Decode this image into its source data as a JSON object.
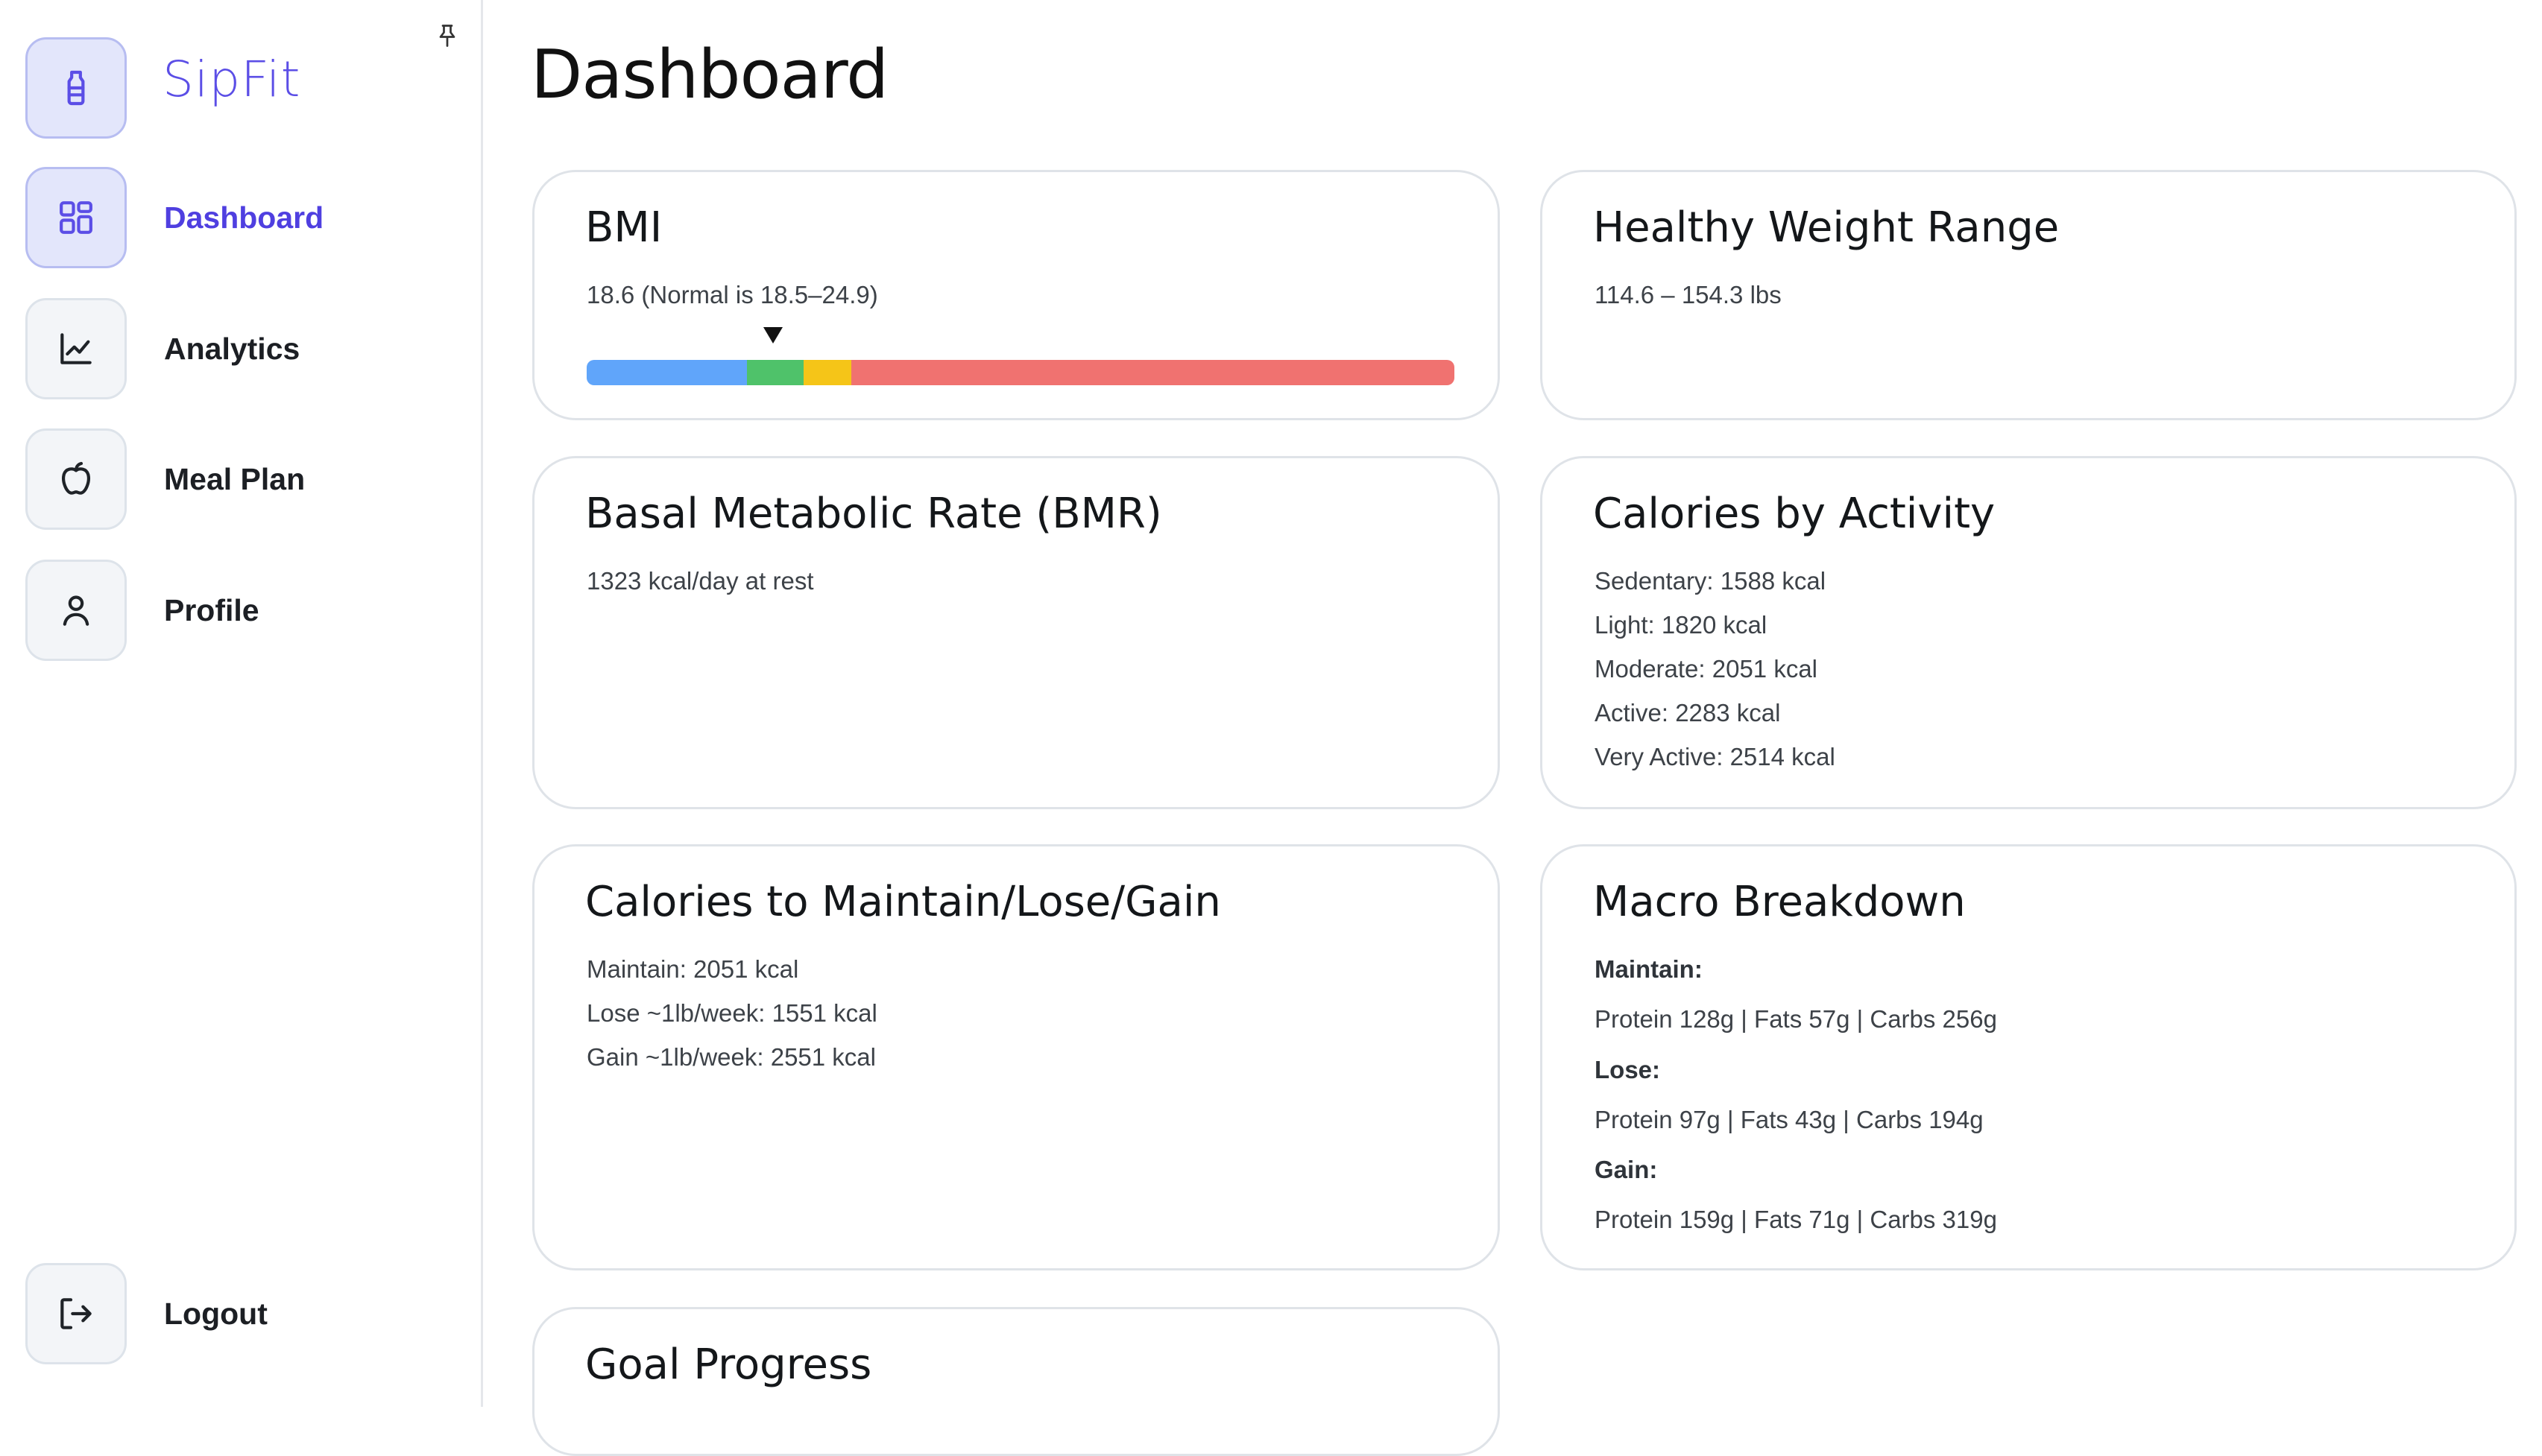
{
  "app": {
    "brand": "SipFit"
  },
  "sidebar": {
    "items": [
      {
        "label": "Dashboard",
        "icon": "grid-icon",
        "active": true
      },
      {
        "label": "Analytics",
        "icon": "line-chart-icon",
        "active": false
      },
      {
        "label": "Meal Plan",
        "icon": "apple-icon",
        "active": false
      },
      {
        "label": "Profile",
        "icon": "user-icon",
        "active": false
      }
    ],
    "logout_label": "Logout"
  },
  "page": {
    "title": "Dashboard"
  },
  "cards": {
    "bmi": {
      "title": "BMI",
      "text": "18.6 (Normal is 18.5–24.9)",
      "value": 18.6,
      "scale": {
        "min": 10,
        "max": 50,
        "segments": [
          {
            "upTo": 17.4,
            "color": "#60a5fa"
          },
          {
            "upTo": 20.0,
            "color": "#4fc26a"
          },
          {
            "upTo": 22.2,
            "color": "#f5c518"
          },
          {
            "upTo": 50,
            "color": "#f07270"
          }
        ]
      }
    },
    "healthy_weight": {
      "title": "Healthy Weight Range",
      "text": "114.6 – 154.3 lbs"
    },
    "bmr": {
      "title": "Basal Metabolic Rate (BMR)",
      "text": "1323 kcal/day at rest"
    },
    "activity": {
      "title": "Calories by Activity",
      "lines": [
        "Sedentary: 1588 kcal",
        "Light: 1820 kcal",
        "Moderate: 2051 kcal",
        "Active: 2283 kcal",
        "Very Active: 2514 kcal"
      ]
    },
    "maintain": {
      "title": "Calories to Maintain/Lose/Gain",
      "lines": [
        "Maintain: 2051 kcal",
        "Lose ~1lb/week: 1551 kcal",
        "Gain ~1lb/week: 2551 kcal"
      ]
    },
    "macro": {
      "title": "Macro Breakdown",
      "maintain_label": "Maintain:",
      "maintain_text": "Protein 128g | Fats 57g | Carbs 256g",
      "lose_label": "Lose:",
      "lose_text": "Protein 97g | Fats 43g | Carbs 194g",
      "gain_label": "Gain:",
      "gain_text": "Protein 159g | Fats 71g | Carbs 319g"
    },
    "goal": {
      "title": "Goal Progress"
    }
  }
}
